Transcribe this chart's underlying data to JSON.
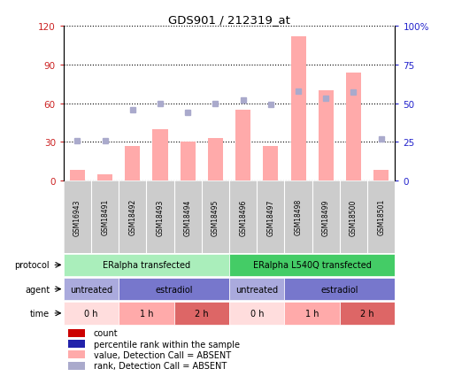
{
  "title": "GDS901 / 212319_at",
  "samples": [
    "GSM16943",
    "GSM18491",
    "GSM18492",
    "GSM18493",
    "GSM18494",
    "GSM18495",
    "GSM18496",
    "GSM18497",
    "GSM18498",
    "GSM18499",
    "GSM18500",
    "GSM18501"
  ],
  "bar_values": [
    8,
    5,
    27,
    40,
    30,
    33,
    55,
    27,
    112,
    70,
    84,
    8
  ],
  "dot_values": [
    26,
    26,
    46,
    50,
    44,
    50,
    52,
    49,
    58,
    53,
    57,
    27
  ],
  "ylim_left": [
    0,
    120
  ],
  "ylim_right": [
    0,
    100
  ],
  "yticks_left": [
    0,
    30,
    60,
    90,
    120
  ],
  "yticks_right": [
    0,
    25,
    50,
    75,
    100
  ],
  "ytick_labels_right": [
    "0",
    "25",
    "50",
    "75",
    "100%"
  ],
  "bar_color": "#ffaaaa",
  "dot_color": "#aaaacc",
  "protocol_groups": [
    {
      "label": "ERalpha transfected",
      "start": 0,
      "end": 6,
      "color": "#aaeebb"
    },
    {
      "label": "ERalpha L540Q transfected",
      "start": 6,
      "end": 12,
      "color": "#44cc66"
    }
  ],
  "agent_groups": [
    {
      "label": "untreated",
      "start": 0,
      "end": 2,
      "color": "#aaaadd"
    },
    {
      "label": "estradiol",
      "start": 2,
      "end": 6,
      "color": "#7777cc"
    },
    {
      "label": "untreated",
      "start": 6,
      "end": 8,
      "color": "#aaaadd"
    },
    {
      "label": "estradiol",
      "start": 8,
      "end": 12,
      "color": "#7777cc"
    }
  ],
  "time_groups": [
    {
      "label": "0 h",
      "start": 0,
      "end": 2,
      "color": "#ffdddd"
    },
    {
      "label": "1 h",
      "start": 2,
      "end": 4,
      "color": "#ffaaaa"
    },
    {
      "label": "2 h",
      "start": 4,
      "end": 6,
      "color": "#dd6666"
    },
    {
      "label": "0 h",
      "start": 6,
      "end": 8,
      "color": "#ffdddd"
    },
    {
      "label": "1 h",
      "start": 8,
      "end": 10,
      "color": "#ffaaaa"
    },
    {
      "label": "2 h",
      "start": 10,
      "end": 12,
      "color": "#dd6666"
    }
  ],
  "row_labels": [
    "protocol",
    "agent",
    "time"
  ],
  "legend_items": [
    {
      "label": "count",
      "color": "#cc0000"
    },
    {
      "label": "percentile rank within the sample",
      "color": "#2222aa"
    },
    {
      "label": "value, Detection Call = ABSENT",
      "color": "#ffaaaa"
    },
    {
      "label": "rank, Detection Call = ABSENT",
      "color": "#aaaacc"
    }
  ],
  "sample_bg_color": "#cccccc",
  "bg_color": "white",
  "left_axis_color": "#cc2222",
  "right_axis_color": "#2222cc",
  "grid_linestyle": ":",
  "grid_linewidth": 0.8
}
